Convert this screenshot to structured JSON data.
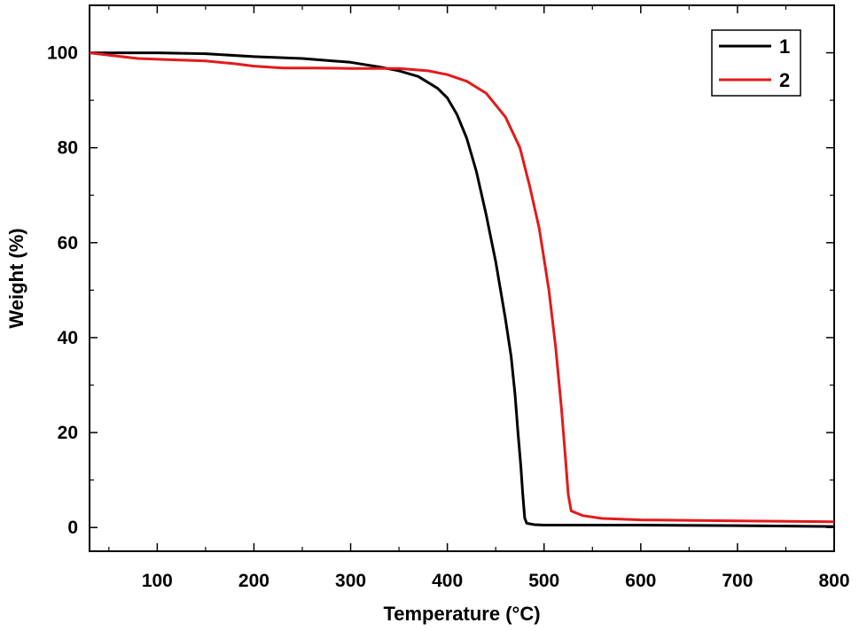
{
  "chart_data": {
    "type": "line",
    "xlabel": "Temperature (°C)",
    "ylabel": "Weight (%)",
    "xlim": [
      30,
      800
    ],
    "ylim": [
      -5,
      110
    ],
    "xticks": [
      100,
      200,
      300,
      400,
      500,
      600,
      700,
      800
    ],
    "yticks": [
      0,
      20,
      40,
      60,
      80,
      100
    ],
    "grid": false,
    "legend_position": "top-right",
    "series": [
      {
        "name": "1",
        "color": "#000000",
        "points": [
          [
            30,
            100
          ],
          [
            60,
            100
          ],
          [
            100,
            100
          ],
          [
            150,
            99.8
          ],
          [
            200,
            99.2
          ],
          [
            250,
            98.8
          ],
          [
            300,
            98
          ],
          [
            330,
            97
          ],
          [
            350,
            96.2
          ],
          [
            370,
            95
          ],
          [
            390,
            92.5
          ],
          [
            400,
            90.5
          ],
          [
            410,
            87
          ],
          [
            420,
            82
          ],
          [
            430,
            75
          ],
          [
            440,
            66
          ],
          [
            450,
            56
          ],
          [
            460,
            44
          ],
          [
            466,
            36
          ],
          [
            470,
            28
          ],
          [
            473,
            20
          ],
          [
            476,
            13
          ],
          [
            478,
            7
          ],
          [
            480,
            2
          ],
          [
            482,
            0.9
          ],
          [
            490,
            0.6
          ],
          [
            500,
            0.5
          ],
          [
            600,
            0.5
          ],
          [
            700,
            0.4
          ],
          [
            800,
            0.2
          ]
        ]
      },
      {
        "name": "2",
        "color": "#e31a1c",
        "points": [
          [
            30,
            100
          ],
          [
            50,
            99.5
          ],
          [
            80,
            98.8
          ],
          [
            120,
            98.5
          ],
          [
            150,
            98.3
          ],
          [
            180,
            97.7
          ],
          [
            200,
            97.2
          ],
          [
            230,
            96.8
          ],
          [
            260,
            96.8
          ],
          [
            300,
            96.7
          ],
          [
            350,
            96.7
          ],
          [
            380,
            96.2
          ],
          [
            400,
            95.4
          ],
          [
            420,
            94
          ],
          [
            440,
            91.5
          ],
          [
            460,
            86.5
          ],
          [
            475,
            80
          ],
          [
            485,
            72
          ],
          [
            495,
            63
          ],
          [
            505,
            50
          ],
          [
            512,
            38
          ],
          [
            518,
            25
          ],
          [
            522,
            15
          ],
          [
            525,
            7
          ],
          [
            528,
            3.5
          ],
          [
            540,
            2.5
          ],
          [
            560,
            1.9
          ],
          [
            600,
            1.6
          ],
          [
            700,
            1.4
          ],
          [
            800,
            1.2
          ]
        ]
      }
    ]
  }
}
